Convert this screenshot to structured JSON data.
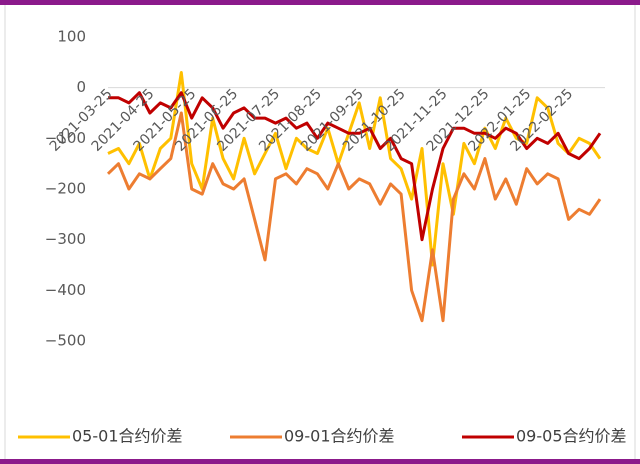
{
  "chart_data": {
    "type": "line",
    "categories": [
      "2021-03-25",
      null,
      null,
      null,
      "2021-04-25",
      null,
      null,
      null,
      "2021-05-25",
      null,
      null,
      null,
      "2021-06-25",
      null,
      null,
      null,
      "2021-07-25",
      null,
      null,
      null,
      "2021-08-25",
      null,
      null,
      null,
      "2021-09-25",
      null,
      null,
      null,
      "2021-10-25",
      null,
      null,
      null,
      "2021-11-25",
      null,
      null,
      null,
      "2021-12-25",
      null,
      null,
      null,
      "2022-01-25",
      null,
      null,
      null,
      "2022-02-25",
      null,
      null,
      null
    ],
    "series": [
      {
        "name": "05-01合约价差",
        "color": "#FFC000",
        "values": [
          -130,
          -120,
          -150,
          -110,
          -180,
          -120,
          -100,
          30,
          -150,
          -200,
          -60,
          -140,
          -180,
          -100,
          -170,
          -130,
          -90,
          -160,
          -100,
          -120,
          -130,
          -80,
          -150,
          -90,
          -30,
          -120,
          -20,
          -140,
          -160,
          -220,
          -120,
          -350,
          -150,
          -250,
          -110,
          -150,
          -80,
          -120,
          -60,
          -100,
          -110,
          -20,
          -40,
          -110,
          -130,
          -100,
          -110,
          -140
        ]
      },
      {
        "name": "09-01合约价差",
        "color": "#ED7D31",
        "values": [
          -170,
          -150,
          -200,
          -170,
          -180,
          -160,
          -140,
          -50,
          -200,
          -210,
          -150,
          -190,
          -200,
          -180,
          -260,
          -340,
          -180,
          -170,
          -190,
          -160,
          -170,
          -200,
          -150,
          -200,
          -180,
          -190,
          -230,
          -190,
          -210,
          -400,
          -460,
          -320,
          -460,
          -220,
          -170,
          -200,
          -140,
          -220,
          -180,
          -230,
          -160,
          -190,
          -170,
          -180,
          -260,
          -240,
          -250,
          -220
        ]
      },
      {
        "name": "09-05合约价差",
        "color": "#C00000",
        "values": [
          -20,
          -20,
          -30,
          -10,
          -50,
          -30,
          -40,
          -10,
          -60,
          -20,
          -40,
          -80,
          -50,
          -40,
          -60,
          -60,
          -70,
          -60,
          -80,
          -70,
          -100,
          -70,
          -80,
          -90,
          -90,
          -80,
          -120,
          -100,
          -140,
          -150,
          -300,
          -200,
          -120,
          -80,
          -80,
          -90,
          -90,
          -100,
          -80,
          -90,
          -120,
          -100,
          -110,
          -90,
          -130,
          -140,
          -120,
          -90
        ]
      }
    ],
    "ylim": [
      -500,
      100
    ],
    "yticks": [
      100,
      0,
      {
        "value": -100,
        "label": "−100"
      },
      {
        "value": -200,
        "label": "−200"
      },
      {
        "value": -300,
        "label": "−300"
      },
      {
        "value": -400,
        "label": "−400"
      },
      {
        "value": -500,
        "label": "−500"
      }
    ]
  }
}
